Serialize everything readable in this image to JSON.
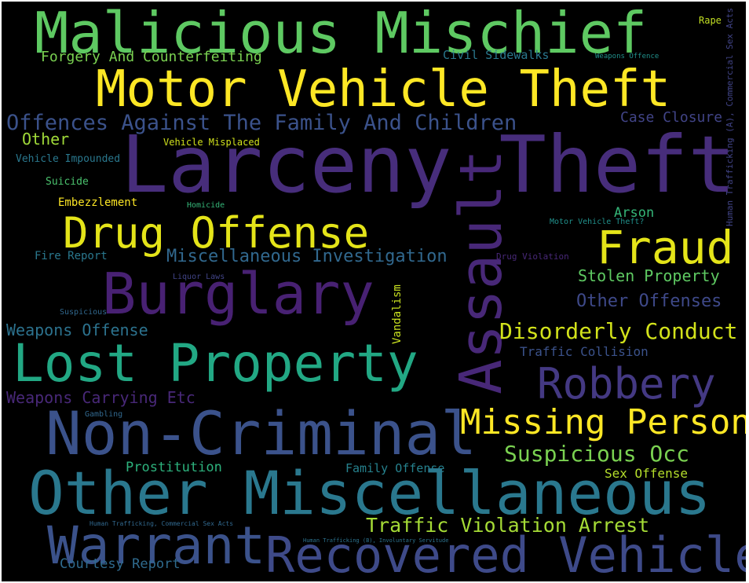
{
  "words": [
    {
      "id": "malicious-mischief",
      "text": "Malicious Mischief",
      "color": "#5ec962"
    },
    {
      "id": "rape",
      "text": "Rape",
      "color": "#c2df23"
    },
    {
      "id": "human-trafficking-a",
      "text": "Human Trafficking (A), Commercial Sex Acts",
      "color": "#414487"
    },
    {
      "id": "forgery",
      "text": "Forgery And Counterfeiting",
      "color": "#7ad151"
    },
    {
      "id": "civil-sidewalks",
      "text": "Civil Sidewalks",
      "color": "#2a788e"
    },
    {
      "id": "weapons-offence",
      "text": "Weapons Offence",
      "color": "#21918c"
    },
    {
      "id": "motor-vehicle-theft",
      "text": "Motor Vehicle Theft",
      "color": "#fde725"
    },
    {
      "id": "offences-family",
      "text": "Offences Against The Family And Children",
      "color": "#3b528b"
    },
    {
      "id": "case-closure",
      "text": "Case Closure",
      "color": "#414487"
    },
    {
      "id": "other",
      "text": "Other",
      "color": "#a0da39"
    },
    {
      "id": "vehicle-misplaced",
      "text": "Vehicle Misplaced",
      "color": "#d0e11c"
    },
    {
      "id": "larceny-theft",
      "text": "Larceny Theft",
      "color": "#472d7b"
    },
    {
      "id": "vehicle-impounded",
      "text": "Vehicle Impounded",
      "color": "#2a788e"
    },
    {
      "id": "suicide",
      "text": "Suicide",
      "color": "#4ac16d"
    },
    {
      "id": "assault",
      "text": "Assault",
      "color": "#482878"
    },
    {
      "id": "embezzlement",
      "text": "Embezzlement",
      "color": "#fde725"
    },
    {
      "id": "homicide",
      "text": "Homicide",
      "color": "#35b779"
    },
    {
      "id": "arson",
      "text": "Arson",
      "color": "#35b779"
    },
    {
      "id": "motor-vehicle-theft-q",
      "text": "Motor Vehicle Theft?",
      "color": "#21918c"
    },
    {
      "id": "drug-offense",
      "text": "Drug Offense",
      "color": "#e4e419"
    },
    {
      "id": "fraud",
      "text": "Fraud",
      "color": "#e4e419"
    },
    {
      "id": "fire-report",
      "text": "Fire Report",
      "color": "#2a788e"
    },
    {
      "id": "misc-investigation",
      "text": "Miscellaneous Investigation",
      "color": "#31688e"
    },
    {
      "id": "drug-violation",
      "text": "Drug Violation",
      "color": "#482878"
    },
    {
      "id": "liquor-laws",
      "text": "Liquor Laws",
      "color": "#414487"
    },
    {
      "id": "stolen-property",
      "text": "Stolen Property",
      "color": "#5ec962"
    },
    {
      "id": "burglary",
      "text": "Burglary",
      "color": "#482173"
    },
    {
      "id": "other-offenses",
      "text": "Other Offenses",
      "color": "#3e4989"
    },
    {
      "id": "vandalism",
      "text": "Vandalism",
      "color": "#c8e020"
    },
    {
      "id": "suspicious",
      "text": "Suspicious",
      "color": "#31688e"
    },
    {
      "id": "weapons-offense",
      "text": "Weapons Offense",
      "color": "#2c728e"
    },
    {
      "id": "disorderly-conduct",
      "text": "Disorderly Conduct",
      "color": "#d2e21b"
    },
    {
      "id": "traffic-collision",
      "text": "Traffic Collision",
      "color": "#3b528b"
    },
    {
      "id": "lost-property",
      "text": "Lost Property",
      "color": "#22a884"
    },
    {
      "id": "robbery",
      "text": "Robbery",
      "color": "#443983"
    },
    {
      "id": "weapons-carrying",
      "text": "Weapons Carrying Etc",
      "color": "#482878"
    },
    {
      "id": "gambling",
      "text": "Gambling",
      "color": "#31688e"
    },
    {
      "id": "non-criminal",
      "text": "Non-Criminal",
      "color": "#3b528b"
    },
    {
      "id": "missing-person",
      "text": "Missing Person",
      "color": "#fde725"
    },
    {
      "id": "suspicious-occ",
      "text": "Suspicious Occ",
      "color": "#7ad151"
    },
    {
      "id": "prostitution",
      "text": "Prostitution",
      "color": "#2db27d"
    },
    {
      "id": "family-offense",
      "text": "Family Offense",
      "color": "#26828e"
    },
    {
      "id": "sex-offense",
      "text": "Sex Offense",
      "color": "#b5de2b"
    },
    {
      "id": "other-miscellaneous",
      "text": "Other Miscellaneous",
      "color": "#2a788e"
    },
    {
      "id": "human-trafficking-csa",
      "text": "Human Trafficking, Commercial Sex Acts",
      "color": "#31688e"
    },
    {
      "id": "traffic-violation-arrest",
      "text": "Traffic Violation Arrest",
      "color": "#a5db36"
    },
    {
      "id": "warrant",
      "text": "Warrant",
      "color": "#3b528b"
    },
    {
      "id": "human-trafficking-b",
      "text": "Human Trafficking (B), Involuntary Servitude",
      "color": "#2c728e"
    },
    {
      "id": "recovered-vehicle",
      "text": "Recovered Vehicle",
      "color": "#3e4a89"
    },
    {
      "id": "courtesy-report",
      "text": "Courtesy Report",
      "color": "#2f6b8e"
    }
  ]
}
